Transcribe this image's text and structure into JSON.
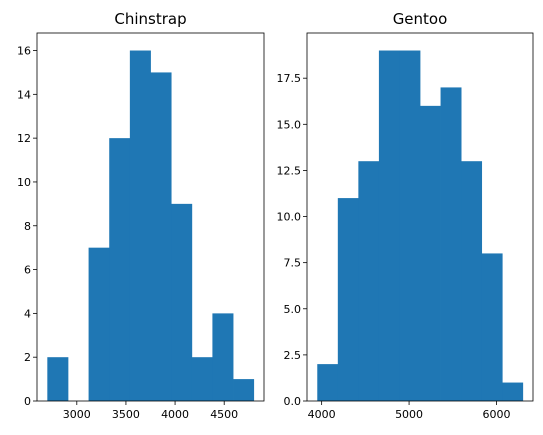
{
  "chart_data": [
    {
      "type": "histogram",
      "title": "Chinstrap",
      "bar_color": "#1f77b4",
      "bins": [
        [
          2700,
          2910,
          2
        ],
        [
          2910,
          3120,
          0
        ],
        [
          3120,
          3330,
          7
        ],
        [
          3330,
          3540,
          12
        ],
        [
          3540,
          3750,
          16
        ],
        [
          3750,
          3960,
          15
        ],
        [
          3960,
          4170,
          9
        ],
        [
          4170,
          4380,
          2
        ],
        [
          4380,
          4590,
          4
        ],
        [
          4590,
          4800,
          1
        ]
      ],
      "xlim": [
        2595,
        4905
      ],
      "ylim": [
        0,
        16.8
      ],
      "xticks": [
        3000,
        3500,
        4000,
        4500
      ],
      "xtick_labels": [
        "3000",
        "3500",
        "4000",
        "4500"
      ],
      "yticks": [
        0,
        2,
        4,
        6,
        8,
        10,
        12,
        14,
        16
      ],
      "ytick_labels": [
        "0",
        "2",
        "4",
        "6",
        "8",
        "10",
        "12",
        "14",
        "16"
      ]
    },
    {
      "type": "histogram",
      "title": "Gentoo",
      "bar_color": "#1f77b4",
      "bins": [
        [
          3950,
          4185,
          2
        ],
        [
          4185,
          4420,
          11
        ],
        [
          4420,
          4655,
          13
        ],
        [
          4655,
          4890,
          19
        ],
        [
          4890,
          5125,
          19
        ],
        [
          5125,
          5360,
          16
        ],
        [
          5360,
          5595,
          17
        ],
        [
          5595,
          5830,
          13
        ],
        [
          5830,
          6065,
          8
        ],
        [
          6065,
          6300,
          1
        ]
      ],
      "xlim": [
        3832.5,
        6417.5
      ],
      "ylim": [
        0,
        19.95
      ],
      "xticks": [
        4000,
        5000,
        6000
      ],
      "xtick_labels": [
        "4000",
        "5000",
        "6000"
      ],
      "yticks": [
        0,
        2.5,
        5,
        7.5,
        10,
        12.5,
        15,
        17.5
      ],
      "ytick_labels": [
        "0.0",
        "2.5",
        "5.0",
        "7.5",
        "10.0",
        "12.5",
        "15.0",
        "17.5"
      ]
    }
  ]
}
